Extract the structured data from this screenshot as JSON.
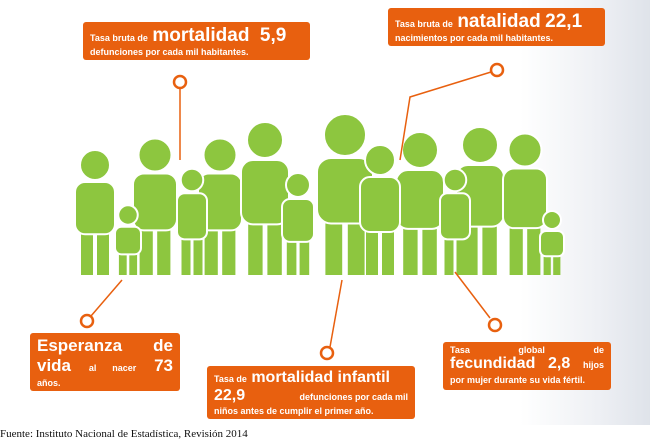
{
  "colors": {
    "accent": "#e8600f",
    "figures": "#8dc63f"
  },
  "mortalidad": {
    "pre": "Tasa bruta de",
    "key": "mortalidad",
    "value": "5,9",
    "desc": "defunciones por cada mil habitantes."
  },
  "natalidad": {
    "pre": "Tasa bruta de",
    "key": "natalidad",
    "value": "22,1",
    "desc": "nacimientos por cada mil habitantes."
  },
  "esperanza": {
    "key": "Esperanza de vida",
    "mid": "al nacer",
    "value": "73",
    "unit": "años."
  },
  "infantil": {
    "pre": "Tasa de",
    "key": "mortalidad infantil",
    "value": "22,9",
    "desc1": "defunciones por cada mil",
    "desc2": "niños antes de cumplir el primer año."
  },
  "fecundidad": {
    "pre": "Tasa global de",
    "key": "fecundidad",
    "value": "2,8",
    "unit": "hijos",
    "desc": "por mujer durante su vida fértil."
  },
  "source": "Fuente: Instituto Nacional de Estadística, Revisión 2014"
}
